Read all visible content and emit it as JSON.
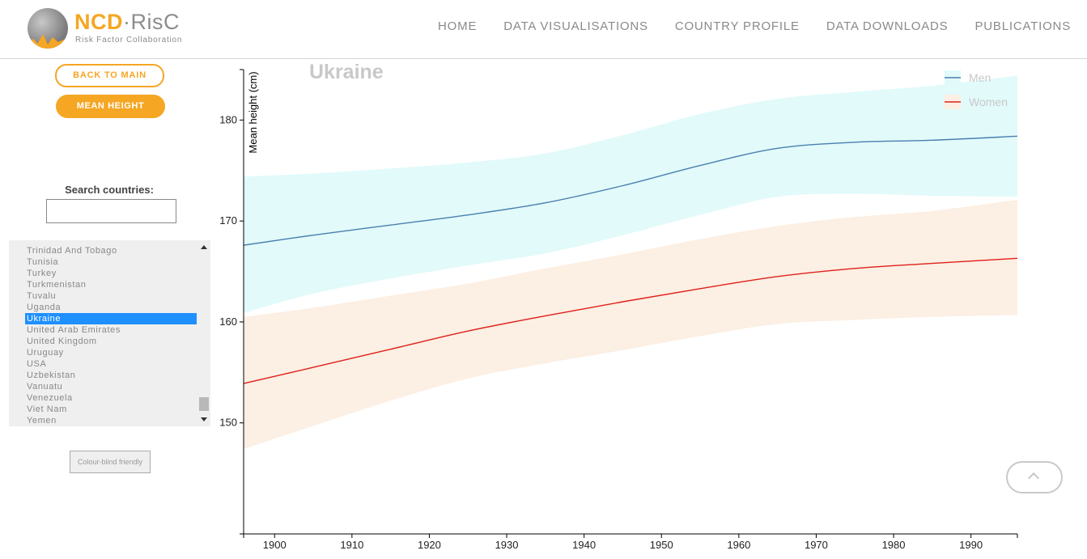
{
  "header": {
    "logo_title_a": "NCD",
    "logo_title_b": "·RisC",
    "logo_subtitle": "Risk Factor Collaboration",
    "nav": [
      "HOME",
      "DATA VISUALISATIONS",
      "COUNTRY PROFILE",
      "DATA DOWNLOADS",
      "PUBLICATIONS"
    ]
  },
  "sidebar": {
    "back_label": "BACK TO MAIN",
    "metric_label": "MEAN HEIGHT",
    "search_label": "Search countries:",
    "search_value": "",
    "countries": [
      "Trinidad And Tobago",
      "Tunisia",
      "Turkey",
      "Turkmenistan",
      "Tuvalu",
      "Uganda",
      "Ukraine",
      "United Arab Emirates",
      "United Kingdom",
      "Uruguay",
      "USA",
      "Uzbekistan",
      "Vanuatu",
      "Venezuela",
      "Viet Nam",
      "Yemen"
    ],
    "selected": "Ukraine",
    "colourblind_label": "Colour-blind friendly"
  },
  "chart_data": {
    "type": "line",
    "title": "Ukraine",
    "xlabel": "",
    "ylabel": "Mean height (cm)",
    "xlim": [
      1896,
      1996
    ],
    "ylim": [
      139,
      185
    ],
    "xticks": [
      1900,
      1910,
      1920,
      1930,
      1940,
      1950,
      1960,
      1970,
      1980,
      1990
    ],
    "yticks": [
      150,
      160,
      170,
      180
    ],
    "legend_position": "top-right",
    "series": [
      {
        "name": "Men",
        "color": "#4a7fb0",
        "band_color": "#e2fafa",
        "x": [
          1896,
          1905,
          1915,
          1925,
          1935,
          1945,
          1955,
          1965,
          1975,
          1985,
          1996
        ],
        "values": [
          167.6,
          168.6,
          169.6,
          170.6,
          171.8,
          173.5,
          175.5,
          177.2,
          177.8,
          178.0,
          178.4
        ],
        "lower": [
          160.9,
          162.8,
          164.3,
          165.6,
          166.8,
          168.6,
          170.6,
          172.4,
          172.7,
          172.5,
          172.4
        ],
        "upper": [
          174.4,
          174.7,
          175.2,
          175.8,
          176.7,
          178.5,
          180.6,
          182.1,
          182.8,
          183.4,
          184.4
        ]
      },
      {
        "name": "Women",
        "color": "#e0201b",
        "band_color": "#fcefe3",
        "x": [
          1896,
          1905,
          1915,
          1925,
          1935,
          1945,
          1955,
          1965,
          1975,
          1985,
          1996
        ],
        "values": [
          153.9,
          155.5,
          157.3,
          159.1,
          160.6,
          162.0,
          163.3,
          164.5,
          165.3,
          165.8,
          166.3
        ],
        "lower": [
          147.4,
          149.7,
          152.2,
          154.4,
          155.9,
          157.2,
          158.6,
          159.8,
          160.2,
          160.5,
          160.7
        ],
        "upper": [
          160.5,
          161.4,
          162.6,
          163.8,
          165.3,
          166.7,
          168.2,
          169.5,
          170.4,
          171.0,
          172.1
        ]
      }
    ]
  }
}
